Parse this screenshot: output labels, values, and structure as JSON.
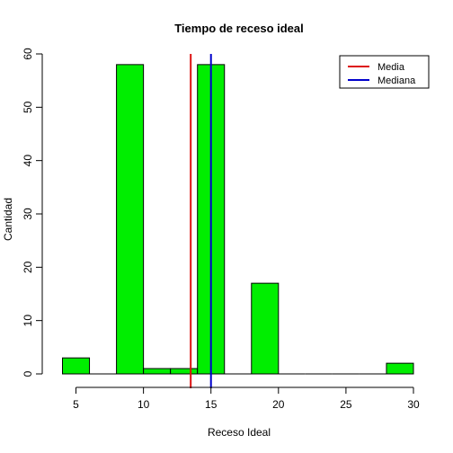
{
  "chart_data": {
    "type": "bar",
    "title": "Tiempo de receso ideal",
    "xlabel": "Receso Ideal",
    "ylabel": "Cantidad",
    "xlim": [
      3.5,
      30
    ],
    "ylim": [
      0,
      60
    ],
    "x_ticks": [
      5,
      10,
      15,
      20,
      25,
      30
    ],
    "y_ticks": [
      0,
      10,
      20,
      30,
      40,
      50,
      60
    ],
    "bins": [
      {
        "x0": 4,
        "x1": 6,
        "value": 3
      },
      {
        "x0": 6,
        "x1": 8,
        "value": 0
      },
      {
        "x0": 8,
        "x1": 10,
        "value": 58
      },
      {
        "x0": 10,
        "x1": 12,
        "value": 1
      },
      {
        "x0": 12,
        "x1": 14,
        "value": 1
      },
      {
        "x0": 14,
        "x1": 16,
        "value": 58
      },
      {
        "x0": 16,
        "x1": 18,
        "value": 0
      },
      {
        "x0": 18,
        "x1": 20,
        "value": 17
      },
      {
        "x0": 20,
        "x1": 22,
        "value": 0
      },
      {
        "x0": 22,
        "x1": 24,
        "value": 0
      },
      {
        "x0": 24,
        "x1": 26,
        "value": 0
      },
      {
        "x0": 26,
        "x1": 28,
        "value": 0
      },
      {
        "x0": 28,
        "x1": 30,
        "value": 2
      }
    ],
    "bar_color": "#00ee00",
    "reference_lines": [
      {
        "name": "Media",
        "x": 13.5,
        "color": "#dd1111"
      },
      {
        "name": "Mediana",
        "x": 15,
        "color": "#0000cc"
      }
    ],
    "legend": {
      "placement": "top-right",
      "entries": [
        {
          "label": "Media",
          "color": "#dd1111"
        },
        {
          "label": "Mediana",
          "color": "#0000cc"
        }
      ]
    },
    "grid": false
  }
}
